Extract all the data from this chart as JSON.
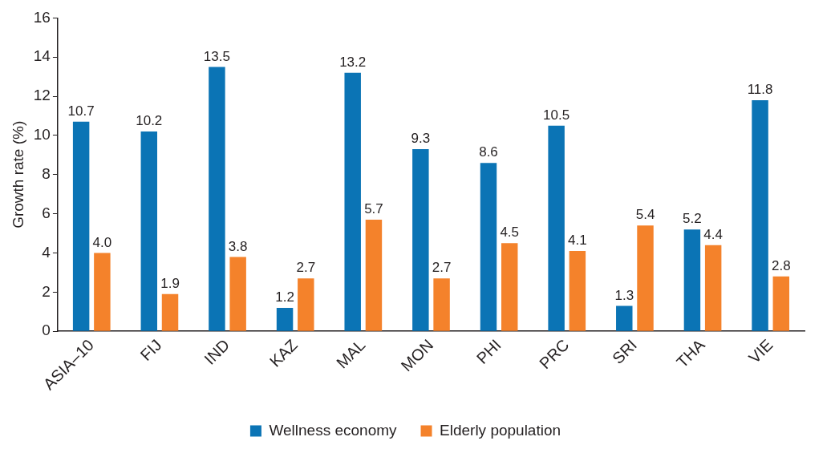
{
  "chart_data": {
    "type": "bar",
    "ylabel": "Growth rate (%)",
    "categories": [
      "ASIA–10",
      "FIJ",
      "IND",
      "KAZ",
      "MAL",
      "MON",
      "PHI",
      "PRC",
      "SRI",
      "THA",
      "VIE"
    ],
    "series": [
      {
        "name": "Wellness economy",
        "color": "#0b74b5",
        "values": [
          10.7,
          10.2,
          13.5,
          1.2,
          13.2,
          9.3,
          8.6,
          10.5,
          1.3,
          5.2,
          11.8
        ],
        "value_labels": [
          "10.7",
          "10.2",
          "13.5",
          "1.2",
          "13.2",
          "9.3",
          "8.6",
          "10.5",
          "1.3",
          "5.2",
          "11.8"
        ]
      },
      {
        "name": "Elderly population",
        "color": "#f4822b",
        "values": [
          4.0,
          1.9,
          3.8,
          2.7,
          5.7,
          2.7,
          4.5,
          4.1,
          5.4,
          4.4,
          2.8
        ],
        "value_labels": [
          "4.0",
          "1.9",
          "3.8",
          "2.7",
          "5.7",
          "2.7",
          "4.5",
          "4.1",
          "5.4",
          "4.4",
          "2.8"
        ]
      }
    ],
    "ylim": [
      0,
      16
    ],
    "yticks": [
      0,
      2,
      4,
      6,
      8,
      10,
      12,
      14,
      16
    ],
    "grid": false,
    "legend": "bottom"
  }
}
